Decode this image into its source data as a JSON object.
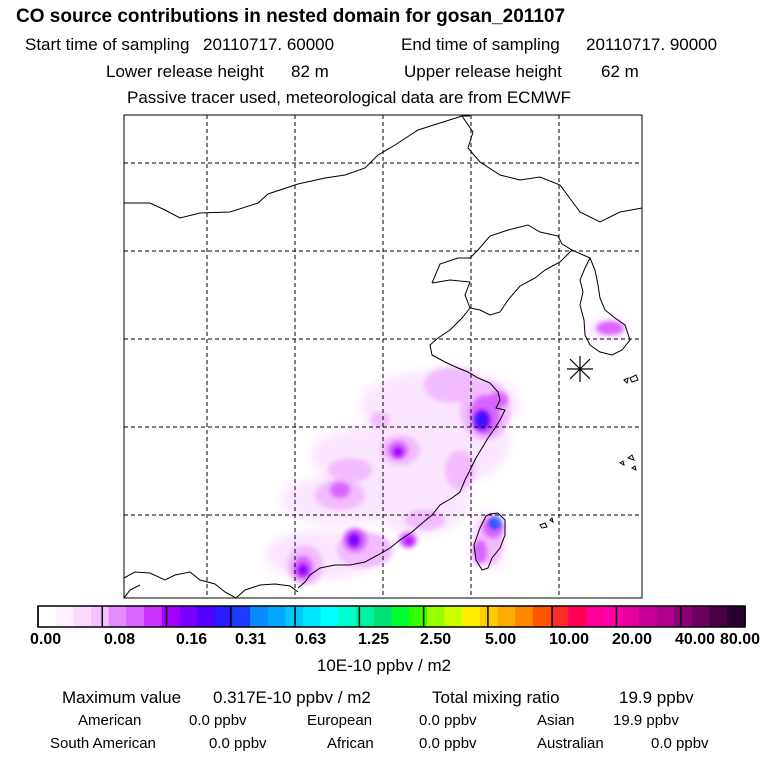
{
  "header": {
    "title": "CO  source contributions in nested domain for gosan_201107",
    "start_label": "Start time of sampling",
    "start_value": "20110717. 60000",
    "end_label": "End time of sampling",
    "end_value": "20110717. 90000",
    "lower_label": "Lower release height",
    "lower_value": "82 m",
    "upper_label": "Upper release height",
    "upper_value": "62 m",
    "tracer_note": "Passive tracer used, meteorological data are from ECMWF"
  },
  "map": {
    "description_icon": "release-site-star-icon",
    "plume_colors": [
      "#fbe6ff",
      "#f2bbff",
      "#e58cff",
      "#cc33ff",
      "#9900ff",
      "#1a1aff",
      "#1e78ff"
    ]
  },
  "colorbar": {
    "colors": [
      "#ffffff",
      "#fdf0ff",
      "#fadaff",
      "#f5c2ff",
      "#e48bff",
      "#d865ff",
      "#cc33ff",
      "#a800ff",
      "#7a00ff",
      "#5200ff",
      "#2a1aff",
      "#1e3cff",
      "#0a8cff",
      "#00a8ff",
      "#00c8ff",
      "#00e6ff",
      "#00ffff",
      "#00ffcc",
      "#00f0a0",
      "#00e070",
      "#00ff33",
      "#33ff00",
      "#99ff00",
      "#ccff00",
      "#ffee00",
      "#ffcc00",
      "#ffaa00",
      "#ff8800",
      "#ff5500",
      "#ff2a2a",
      "#ff0055",
      "#ff0099",
      "#ff00aa",
      "#e600a0",
      "#c8009a",
      "#b0008c",
      "#8c0078",
      "#6a0060",
      "#4a0046",
      "#2a0030"
    ],
    "tick_labels": [
      "0.00",
      "0.08",
      "0.16",
      "0.31",
      "0.63",
      "1.25",
      "2.50",
      "5.00",
      "10.00",
      "20.00",
      "40.00",
      "80.00"
    ],
    "units": "10E-10 ppbv / m2"
  },
  "summary": {
    "max_label": "Maximum value",
    "max_value": "0.317E-10 ppbv / m2",
    "total_label": "Total mixing ratio",
    "total_value": "19.9 ppbv"
  },
  "regions": [
    {
      "name": "American",
      "value": "0.0 ppbv"
    },
    {
      "name": "European",
      "value": "0.0 ppbv"
    },
    {
      "name": "Asian",
      "value": "19.9 ppbv"
    },
    {
      "name": "South American",
      "value": "0.0 ppbv"
    },
    {
      "name": "African",
      "value": "0.0 ppbv"
    },
    {
      "name": "Australian",
      "value": "0.0 ppbv"
    }
  ]
}
